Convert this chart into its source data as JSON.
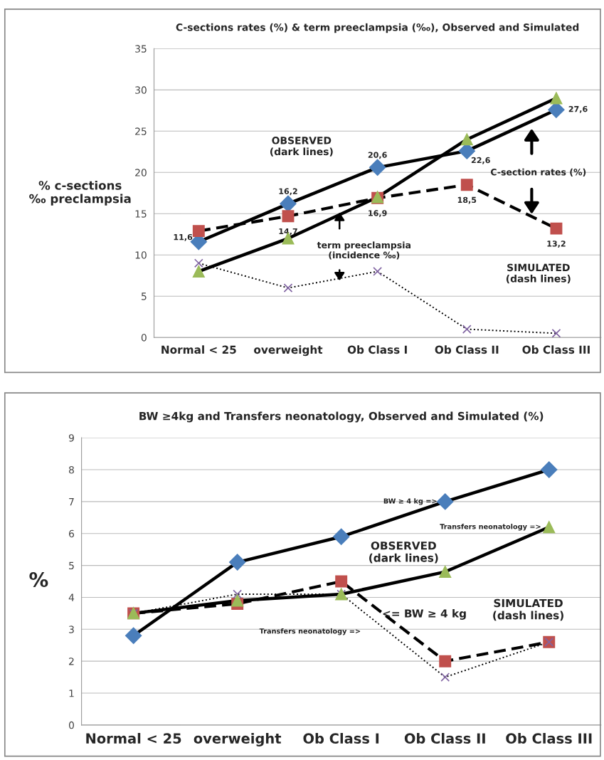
{
  "chart_data": [
    {
      "type": "line",
      "title": "C-sections rates (%) & term preeclampsia (‰), Observed and Simulated",
      "ylabel": "% c-sections\n‰ preclampsia",
      "categories": [
        "Normal < 25",
        "overweight",
        "Ob Class I",
        "Ob Class II",
        "Ob Class III"
      ],
      "series": [
        {
          "color": "#4a7ebb",
          "marker": "diamond",
          "line_style": "solid",
          "values": [
            11.6,
            16.2,
            20.6,
            22.6,
            27.6
          ],
          "value_labels": [
            "11,6",
            "16,2",
            "20,6",
            "22,6",
            "27,6"
          ]
        },
        {
          "color": "#c0504d",
          "marker": "square",
          "line_style": "dashed",
          "values": [
            12.9,
            14.7,
            16.9,
            18.5,
            13.2
          ],
          "value_labels": [
            null,
            "14,7",
            "16,9",
            "18,5",
            "13,2"
          ]
        },
        {
          "color": "#9bbb59",
          "marker": "triangle",
          "line_style": "solid",
          "values": [
            8,
            12,
            17,
            24,
            29
          ]
        },
        {
          "color": "#8064a2",
          "marker": "cross",
          "line_style": "dotted",
          "values": [
            9,
            6,
            8,
            1,
            0.5
          ]
        }
      ],
      "ylim": [
        0,
        35
      ],
      "yticks": [
        0,
        5,
        10,
        15,
        20,
        25,
        30,
        35
      ],
      "grid": "y",
      "legend": false,
      "annotations": [
        "OBSERVED\n(dark lines)",
        "C-section rates (%)",
        "term preeclampsia\n(incidence ‰)",
        "SIMULATED\n(dash lines)"
      ]
    },
    {
      "type": "line",
      "title": "BW ≥4kg and Transfers neonatology, Observed and Simulated (%)",
      "ylabel": "%",
      "categories": [
        "Normal < 25",
        "overweight",
        "Ob Class I",
        "Ob Class II",
        "Ob Class III"
      ],
      "series": [
        {
          "color": "#4a7ebb",
          "marker": "diamond",
          "line_style": "solid",
          "values": [
            2.8,
            5.1,
            5.9,
            7.0,
            8.0
          ]
        },
        {
          "color": "#9bbb59",
          "marker": "triangle",
          "line_style": "solid",
          "values": [
            3.5,
            3.9,
            4.1,
            4.8,
            6.2
          ]
        },
        {
          "color": "#c0504d",
          "marker": "square",
          "line_style": "dashed",
          "values": [
            3.5,
            3.8,
            4.5,
            2.0,
            2.6
          ]
        },
        {
          "color": "#8064a2",
          "marker": "cross",
          "line_style": "dotted",
          "values": [
            3.5,
            4.1,
            4.1,
            1.5,
            2.6
          ]
        }
      ],
      "ylim": [
        0,
        9
      ],
      "yticks": [
        0,
        1,
        2,
        3,
        4,
        5,
        6,
        7,
        8,
        9
      ],
      "grid": "y",
      "legend": false,
      "annotations": [
        {
          "text": "BW ≥ 4 kg =>",
          "x": "Ob Class II",
          "y": 7
        },
        {
          "text": "Transfers neonatology =>",
          "x": "Ob Class III",
          "y": 6.2
        },
        "OBSERVED\n(dark lines)",
        "<= BW ≥ 4 kg",
        "Transfers neonatology =>",
        "SIMULATED\n(dash lines)"
      ]
    }
  ]
}
